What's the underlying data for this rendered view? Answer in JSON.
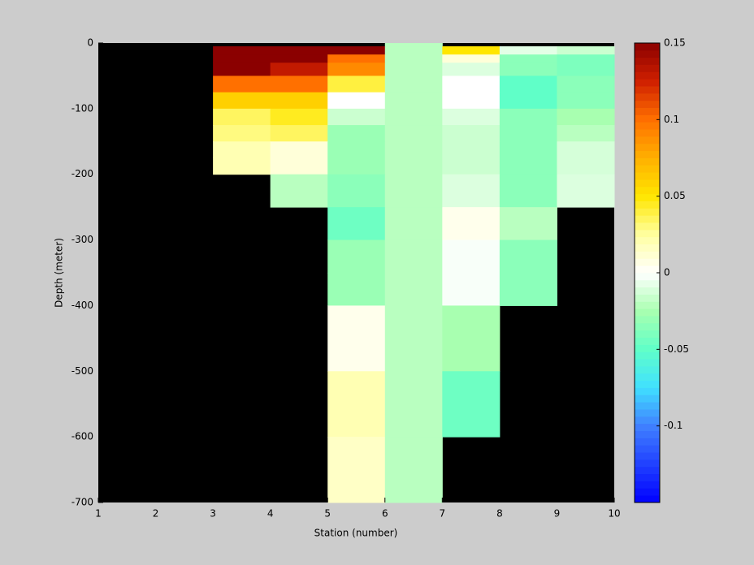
{
  "chart_data": {
    "type": "heatmap",
    "xlabel": "Station (number)",
    "ylabel": "Depth (meter)",
    "x": [
      1,
      2,
      3,
      4,
      5,
      6,
      7,
      8,
      9,
      10
    ],
    "y": [
      0,
      -5,
      -17.5,
      -30,
      -50,
      -75,
      -100,
      -125,
      -150,
      -175,
      -200,
      -250,
      -300,
      -350,
      -400,
      -500,
      -600,
      -700
    ],
    "xlim": [
      1,
      10
    ],
    "ylim": [
      -700,
      0
    ],
    "xticks": [
      1,
      2,
      3,
      4,
      5,
      6,
      7,
      8,
      9,
      10
    ],
    "yticks": [
      0,
      -100,
      -200,
      -300,
      -400,
      -500,
      -600,
      -700
    ],
    "values": [
      [
        null,
        null,
        null,
        null,
        null,
        -0.02,
        null,
        null,
        null
      ],
      [
        null,
        null,
        0.15,
        0.15,
        0.15,
        -0.02,
        0.05,
        -0.008,
        -0.015
      ],
      [
        null,
        null,
        0.15,
        0.15,
        0.1,
        -0.02,
        0.01,
        -0.035,
        -0.04
      ],
      [
        null,
        null,
        0.15,
        0.13,
        0.09,
        -0.02,
        -0.01,
        -0.035,
        -0.04
      ],
      [
        null,
        null,
        0.1,
        0.1,
        0.04,
        -0.02,
        0,
        -0.05,
        -0.035
      ],
      [
        null,
        null,
        0.06,
        0.06,
        0,
        -0.02,
        0,
        -0.05,
        -0.035
      ],
      [
        null,
        null,
        0.035,
        0.045,
        -0.015,
        -0.02,
        -0.01,
        -0.035,
        -0.025
      ],
      [
        null,
        null,
        0.03,
        0.035,
        -0.03,
        -0.02,
        -0.015,
        -0.035,
        -0.02
      ],
      [
        null,
        null,
        0.02,
        0.01,
        -0.03,
        -0.02,
        -0.015,
        -0.035,
        -0.012
      ],
      [
        null,
        null,
        0.02,
        0.01,
        -0.03,
        -0.02,
        -0.015,
        -0.035,
        -0.012
      ],
      [
        null,
        null,
        null,
        -0.02,
        -0.035,
        -0.02,
        -0.01,
        -0.035,
        -0.01
      ],
      [
        null,
        null,
        null,
        null,
        -0.045,
        -0.02,
        0.005,
        -0.02,
        null
      ],
      [
        null,
        null,
        null,
        null,
        -0.03,
        -0.02,
        -0.002,
        -0.035,
        null
      ],
      [
        null,
        null,
        null,
        null,
        -0.03,
        -0.02,
        -0.002,
        -0.035,
        null
      ],
      [
        null,
        null,
        null,
        null,
        0.005,
        -0.02,
        -0.025,
        null,
        null
      ],
      [
        null,
        null,
        null,
        null,
        0.02,
        -0.02,
        -0.045,
        null,
        null
      ],
      [
        null,
        null,
        null,
        null,
        0.015,
        -0.02,
        null,
        null,
        null
      ]
    ],
    "clim": [
      -0.15,
      0.15
    ],
    "cticks": [
      -0.1,
      -0.05,
      0,
      0.05,
      0.1,
      0.15
    ],
    "colormap": [
      "#0000ff",
      "#2040ff",
      "#4080ff",
      "#40e0ff",
      "#60ffc8",
      "#a8ffb0",
      "#ffffff",
      "#ffffa0",
      "#ffe600",
      "#ffb000",
      "#ff7000",
      "#d02000",
      "#8b0000"
    ],
    "missing_color": "#000000"
  }
}
